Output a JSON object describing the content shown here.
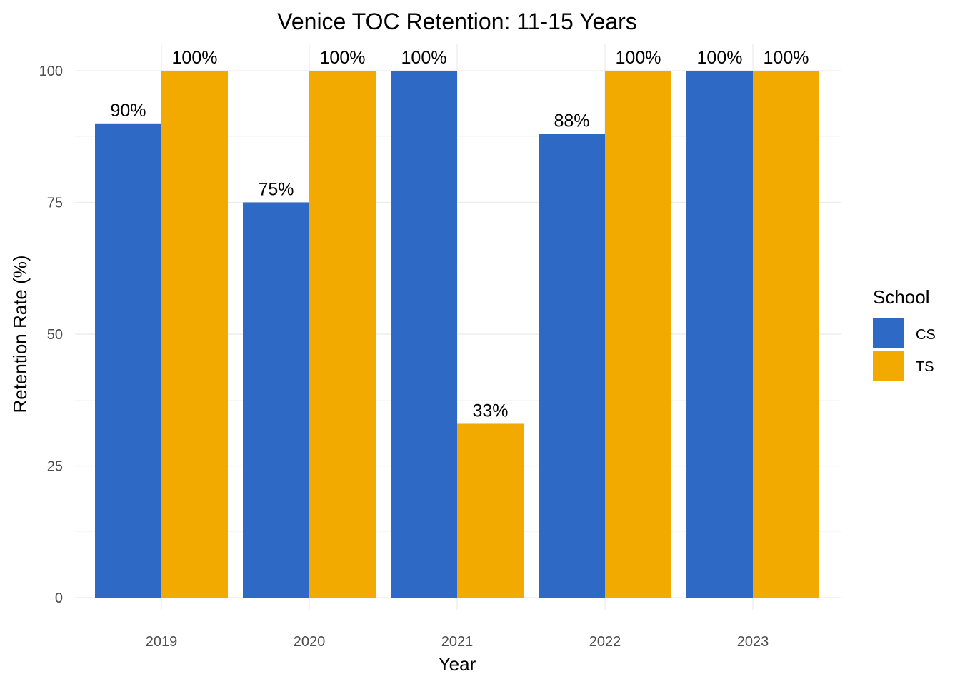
{
  "chart_data": {
    "type": "bar",
    "title": "Venice TOC Retention: 11-15 Years",
    "xlabel": "Year",
    "ylabel": "Retention Rate (%)",
    "categories": [
      "2019",
      "2020",
      "2021",
      "2022",
      "2023"
    ],
    "series": [
      {
        "name": "CS",
        "color": "#2e69c5",
        "values": [
          90,
          75,
          100,
          88,
          100
        ],
        "labels": [
          "90%",
          "75%",
          "100%",
          "88%",
          "100%"
        ]
      },
      {
        "name": "TS",
        "color": "#f2a900",
        "values": [
          100,
          100,
          33,
          100,
          100
        ],
        "labels": [
          "100%",
          "100%",
          "33%",
          "100%",
          "100%"
        ]
      }
    ],
    "ylim": [
      0,
      100
    ],
    "yticks": [
      0,
      25,
      50,
      75,
      100
    ],
    "ytick_labels": [
      "0",
      "25",
      "50",
      "75",
      "100"
    ],
    "grid": true,
    "legend": {
      "title": "School",
      "position": "right"
    }
  }
}
